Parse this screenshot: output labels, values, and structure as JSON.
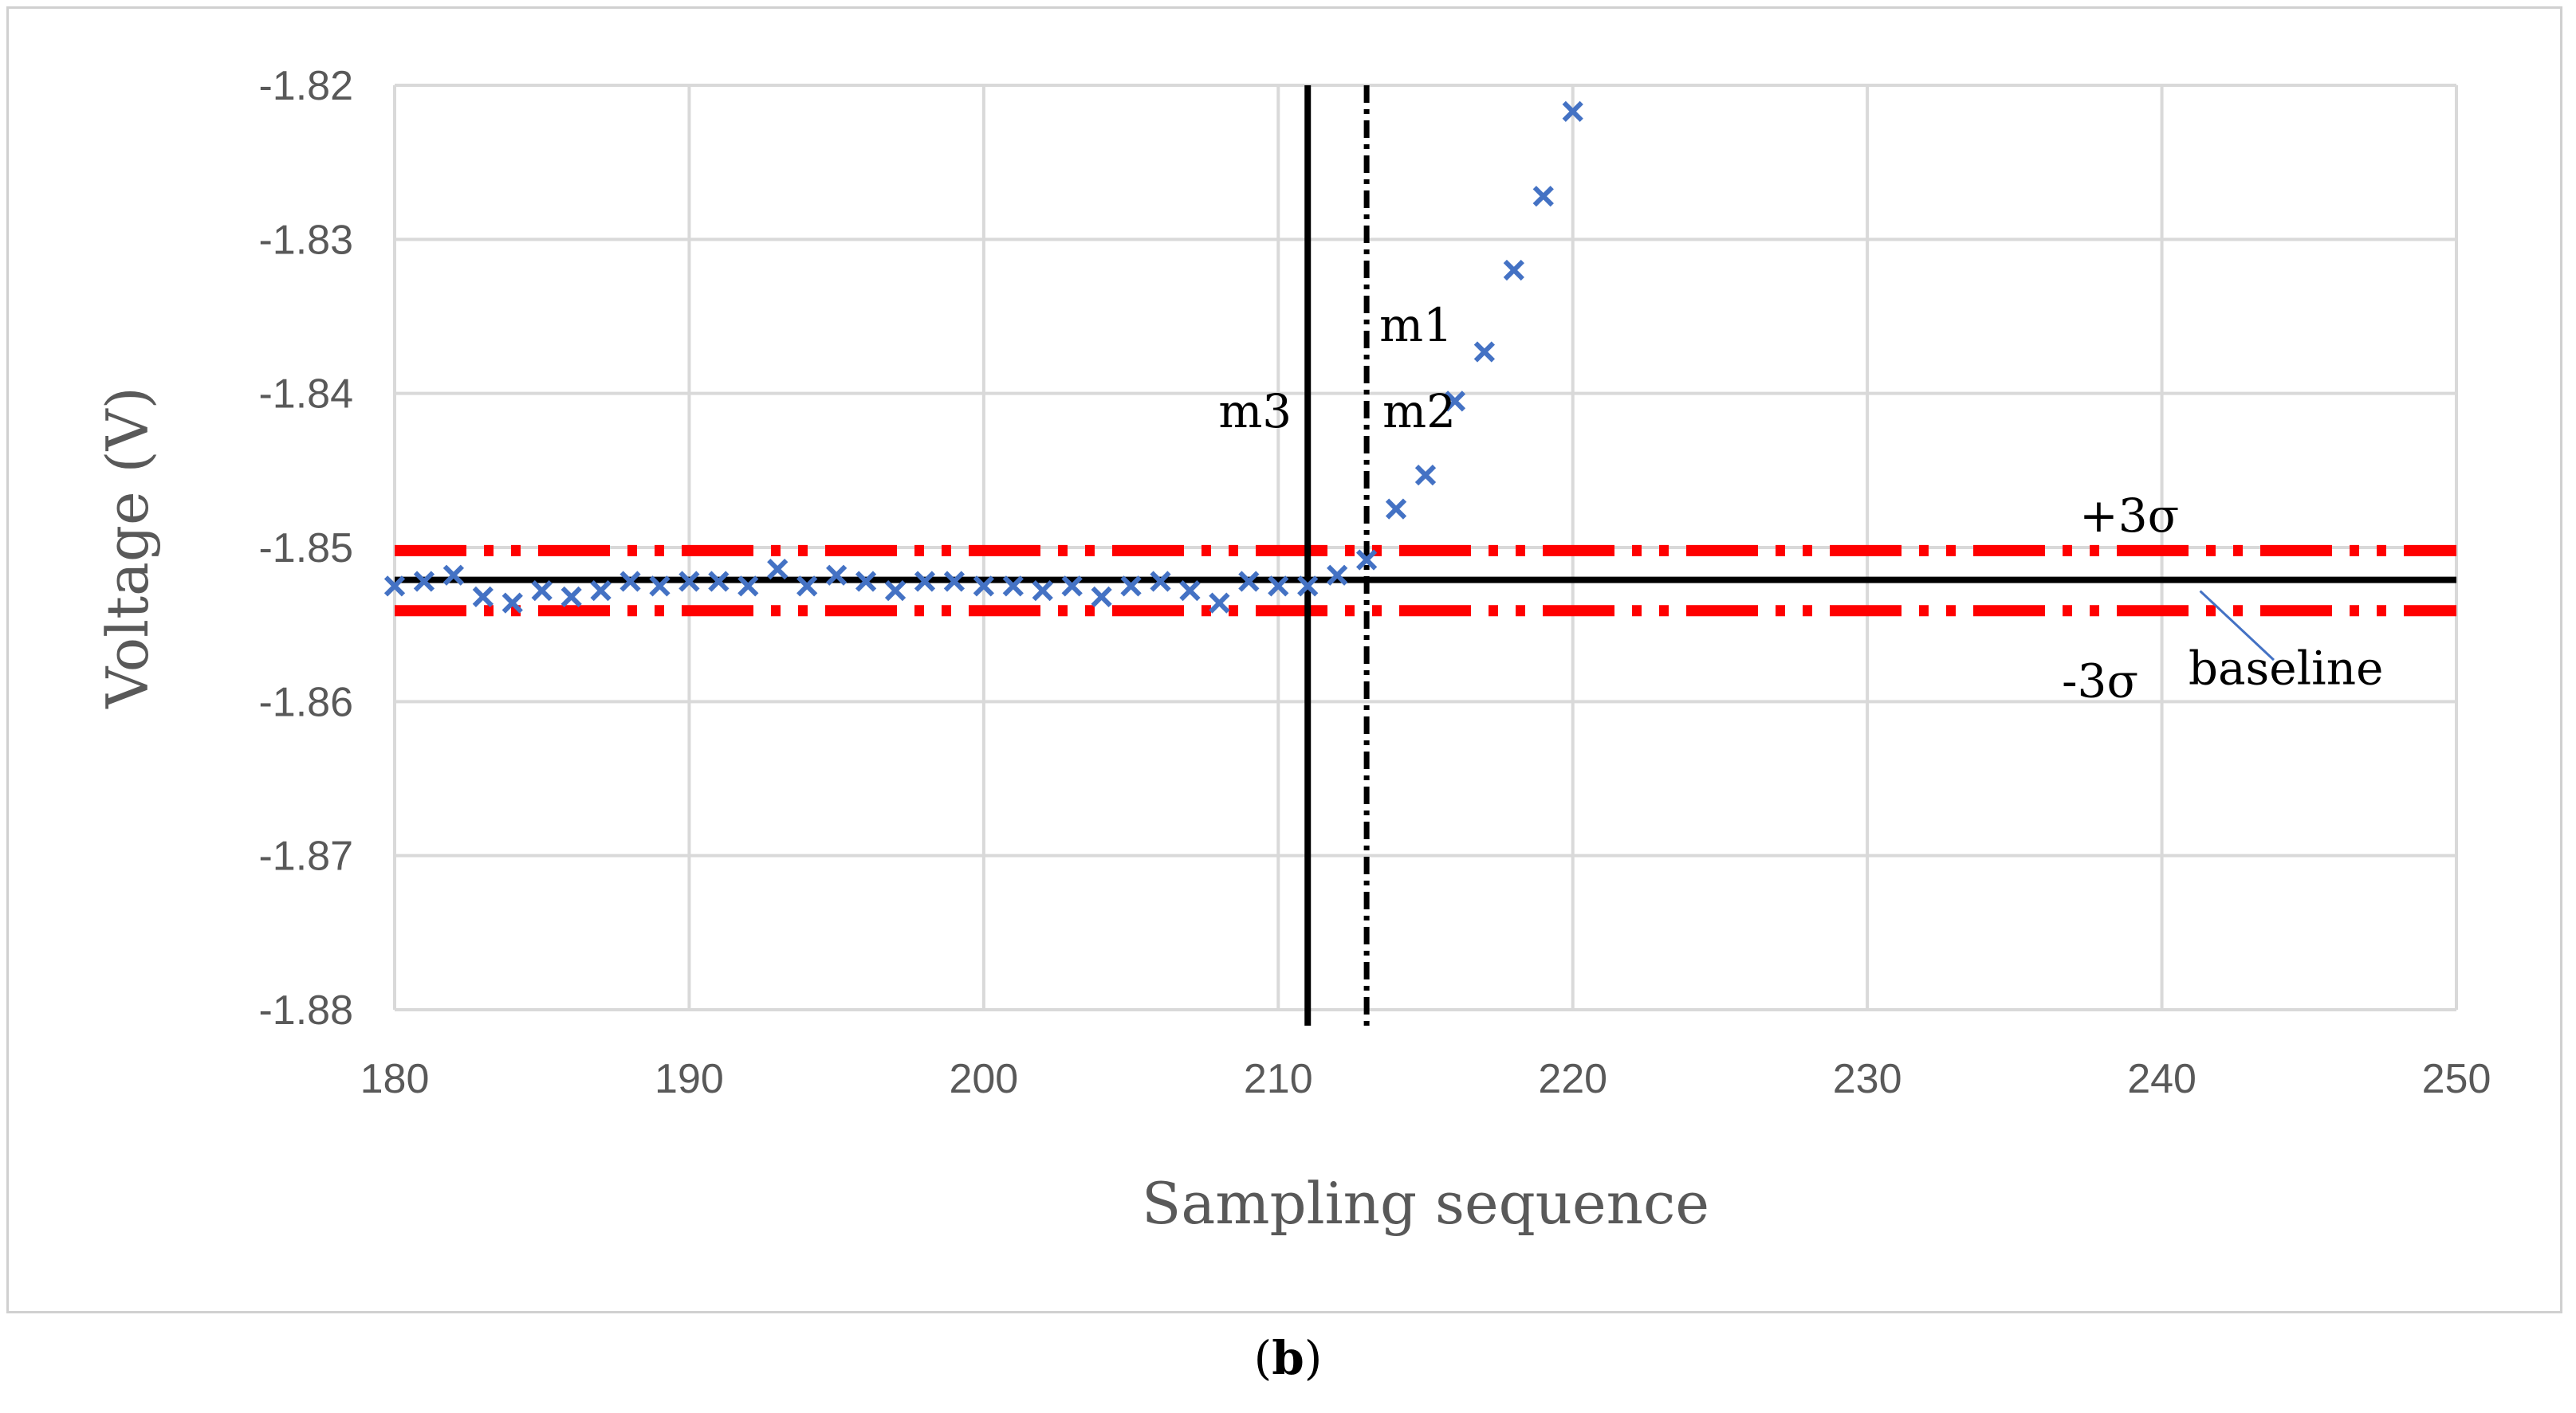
{
  "caption": {
    "open": "(",
    "letter": "b",
    "close": ")"
  },
  "chart_data": {
    "type": "scatter",
    "xlabel": "Sampling sequence",
    "ylabel": "Voltage (V)",
    "xlim": [
      180,
      250
    ],
    "ylim": [
      -1.88,
      -1.82
    ],
    "xticks": [
      180,
      190,
      200,
      210,
      220,
      230,
      240,
      250
    ],
    "yticks": [
      -1.82,
      -1.83,
      -1.84,
      -1.85,
      -1.86,
      -1.87,
      -1.88
    ],
    "xtick_labels": [
      "180",
      "190",
      "200",
      "210",
      "220",
      "230",
      "240",
      "250"
    ],
    "ytick_labels": [
      "-1.82",
      "-1.83",
      "-1.84",
      "-1.85",
      "-1.86",
      "-1.87",
      "-1.88"
    ],
    "grid": true,
    "series": [
      {
        "marker": "x",
        "color": "#4472C4",
        "x": [
          180,
          181,
          182,
          183,
          184,
          185,
          186,
          187,
          188,
          189,
          190,
          191,
          192,
          193,
          194,
          195,
          196,
          197,
          198,
          199,
          200,
          201,
          202,
          203,
          204,
          205,
          206,
          207,
          208,
          209,
          210,
          211,
          212,
          213,
          214,
          215,
          216,
          217,
          218,
          219,
          220
        ],
        "y": [
          -1.8525,
          -1.8522,
          -1.8518,
          -1.8532,
          -1.8536,
          -1.8528,
          -1.8532,
          -1.8528,
          -1.8522,
          -1.8525,
          -1.8522,
          -1.8522,
          -1.8525,
          -1.8514,
          -1.8525,
          -1.8518,
          -1.8522,
          -1.8528,
          -1.8522,
          -1.8522,
          -1.8525,
          -1.8525,
          -1.8528,
          -1.8525,
          -1.8532,
          -1.8525,
          -1.8522,
          -1.8528,
          -1.8536,
          -1.8522,
          -1.8525,
          -1.8525,
          -1.8518,
          -1.8508,
          -1.8475,
          -1.8453,
          -1.8405,
          -1.8373,
          -1.832,
          -1.8272,
          -1.8217
        ]
      }
    ],
    "reference_lines": [
      {
        "orientation": "horizontal",
        "value": -1.8502,
        "style": "dash-dot-dot",
        "color": "#FF0000",
        "label": "+3σ"
      },
      {
        "orientation": "horizontal",
        "value": -1.8541,
        "style": "dash-dot-dot",
        "color": "#FF0000",
        "label": "-3σ"
      },
      {
        "orientation": "horizontal",
        "value": -1.8521,
        "style": "solid",
        "color": "#000000",
        "label": "baseline"
      },
      {
        "orientation": "vertical",
        "value": 211,
        "style": "solid",
        "color": "#000000",
        "label": "m3"
      },
      {
        "orientation": "vertical",
        "value": 213,
        "style": "dash-dot",
        "color": "#000000",
        "label": "m1"
      }
    ],
    "annotations": [
      "m1",
      "m2",
      "m3",
      "+3σ",
      "-3σ",
      "baseline"
    ]
  }
}
